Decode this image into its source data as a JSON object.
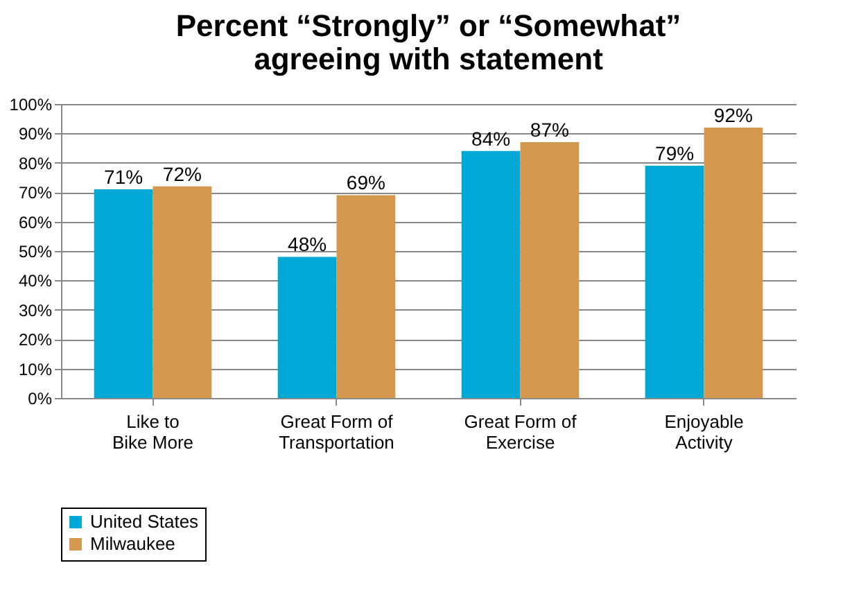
{
  "chart_data": {
    "type": "bar",
    "title": "Percent “Strongly” or “Somewhat” agreeing with statement",
    "categories": [
      "Like to\nBike More",
      "Great Form of\nTransportation",
      "Great Form of\nExercise",
      "Enjoyable\nActivity"
    ],
    "series": [
      {
        "name": "United States",
        "color": "#00a8d6",
        "values": [
          71,
          48,
          84,
          79
        ],
        "value_labels": [
          "71%",
          "48%",
          "84%",
          "79%"
        ]
      },
      {
        "name": "Milwaukee",
        "color": "#d3974e",
        "values": [
          72,
          69,
          87,
          92
        ],
        "value_labels": [
          "72%",
          "69%",
          "87%",
          "92%"
        ]
      }
    ],
    "ylim": [
      0,
      100
    ],
    "yticks": [
      {
        "value": 0,
        "label": "0%"
      },
      {
        "value": 10,
        "label": "10%"
      },
      {
        "value": 20,
        "label": "20%"
      },
      {
        "value": 30,
        "label": "30%"
      },
      {
        "value": 40,
        "label": "40%"
      },
      {
        "value": 50,
        "label": "50%"
      },
      {
        "value": 60,
        "label": "60%"
      },
      {
        "value": 70,
        "label": "70%"
      },
      {
        "value": 80,
        "label": "80%"
      },
      {
        "value": 90,
        "label": "90%"
      },
      {
        "value": 100,
        "label": "100%"
      }
    ],
    "grid": "y",
    "legend": "bottom left"
  }
}
